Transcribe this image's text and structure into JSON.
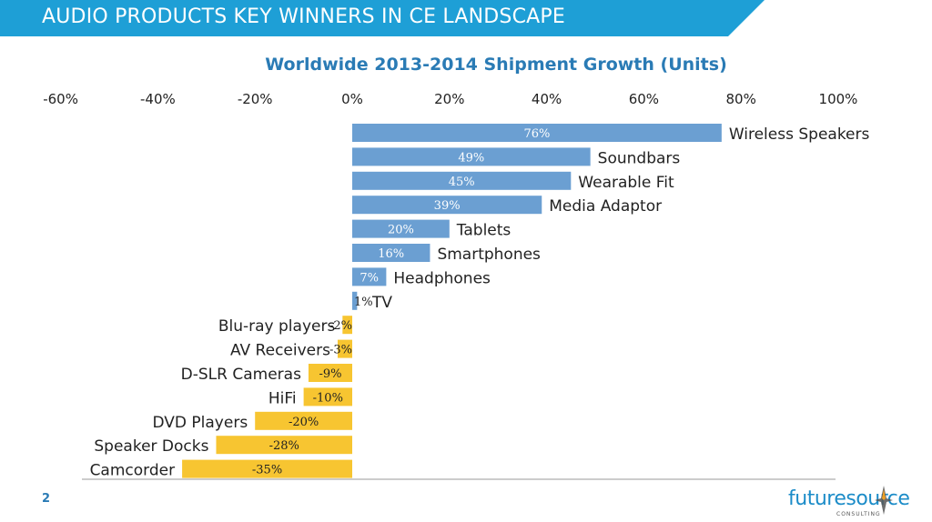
{
  "header": {
    "title": "AUDIO PRODUCTS KEY WINNERS IN CE LANDSCAPE"
  },
  "footer": {
    "page_number": "2",
    "logo_text": "futuresource",
    "logo_subtext": "CONSULTING"
  },
  "colors": {
    "banner": "#1e9fd6",
    "title": "#2a7bb5",
    "positive_bar": "#6b9fd2",
    "negative_bar": "#f7c531",
    "logo": "#1c8cc8"
  },
  "chart_data": {
    "type": "bar",
    "orientation": "horizontal",
    "title": "Worldwide 2013-2014 Shipment Growth (Units)",
    "xlim": [
      -60,
      100
    ],
    "x_ticks": [
      "-60%",
      "-40%",
      "-20%",
      "0%",
      "20%",
      "40%",
      "60%",
      "80%",
      "100%"
    ],
    "grid": false,
    "categories": [
      "Wireless Speakers",
      "Soundbars",
      "Wearable Fit",
      "Media Adaptor",
      "Tablets",
      "Smartphones",
      "Headphones",
      "TV",
      "Blu-ray players",
      "AV Receivers",
      "D-SLR Cameras",
      "HiFi",
      "DVD Players",
      "Speaker Docks",
      "Camcorder"
    ],
    "values": [
      76,
      49,
      45,
      39,
      20,
      16,
      7,
      1,
      -2,
      -3,
      -9,
      -10,
      -20,
      -28,
      -35
    ],
    "value_labels": [
      "76%",
      "49%",
      "45%",
      "39%",
      "20%",
      "16%",
      "7%",
      "1%",
      "-2%",
      "-3%",
      "-9%",
      "-10%",
      "-20%",
      "-28%",
      "-35%"
    ]
  }
}
